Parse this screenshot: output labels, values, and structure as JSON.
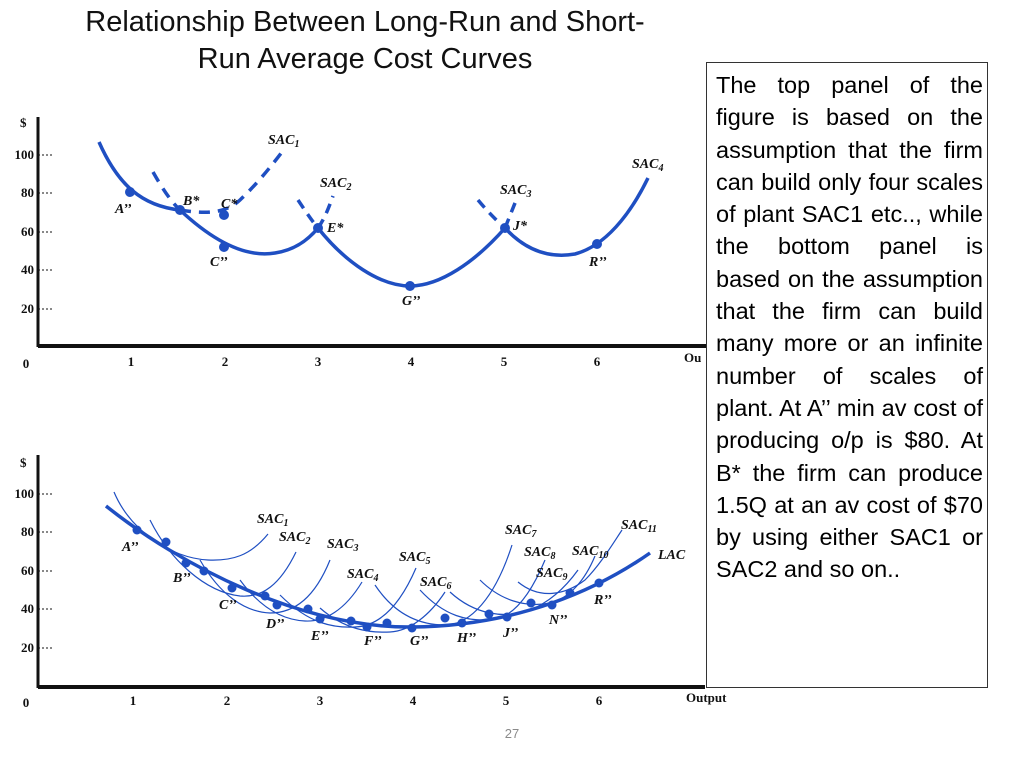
{
  "slide": {
    "title_line1": "Relationship Between Long-Run and Short-",
    "title_line2": "Run Average Cost Curves",
    "page_number": "27",
    "colors": {
      "curve": "#1f4fc2",
      "axis": "#111111",
      "text": "#000000"
    }
  },
  "top_panel": {
    "y_axis_label": "$",
    "x_axis_label": "Ou",
    "y_ticks": [
      "100",
      "80",
      "60",
      "40",
      "20"
    ],
    "x_ticks": [
      "0",
      "1",
      "2",
      "3",
      "4",
      "5",
      "6"
    ],
    "curves": {
      "sac1": {
        "label": "SAC",
        "sub": "1"
      },
      "sac2": {
        "label": "SAC",
        "sub": "2"
      },
      "sac3": {
        "label": "SAC",
        "sub": "3"
      },
      "sac4": {
        "label": "SAC",
        "sub": "4"
      }
    },
    "points": {
      "a": "A’’",
      "b": "B*",
      "c_star": "C*",
      "c": "C’’",
      "e": "E*",
      "g": "G’’",
      "j": "J*",
      "r": "R’’"
    }
  },
  "bottom_panel": {
    "y_axis_label": "$",
    "x_axis_label": "Output",
    "y_ticks": [
      "100",
      "80",
      "60",
      "40",
      "20"
    ],
    "x_ticks": [
      "0",
      "1",
      "2",
      "3",
      "4",
      "5",
      "6"
    ],
    "lac_label": "LAC",
    "curves": {
      "sac1": {
        "label": "SAC",
        "sub": "1"
      },
      "sac2": {
        "label": "SAC",
        "sub": "2"
      },
      "sac3": {
        "label": "SAC",
        "sub": "3"
      },
      "sac4": {
        "label": "SAC",
        "sub": "4"
      },
      "sac5": {
        "label": "SAC",
        "sub": "5"
      },
      "sac6": {
        "label": "SAC",
        "sub": "6"
      },
      "sac7": {
        "label": "SAC",
        "sub": "7"
      },
      "sac8": {
        "label": "SAC",
        "sub": "8"
      },
      "sac9": {
        "label": "SAC",
        "sub": "9"
      },
      "sac10": {
        "label": "SAC",
        "sub": "10"
      },
      "sac11": {
        "label": "SAC",
        "sub": "11"
      }
    },
    "points": {
      "a": "A’’",
      "b": "B’’",
      "c": "C’’",
      "d": "D’’",
      "e": "E’’",
      "f": "F’’",
      "g": "G’’",
      "h": "H’’",
      "j": "J’’",
      "n": "N’’",
      "r": "R’’"
    }
  },
  "explanation": {
    "text": "The top panel of the figure is based on the assumption that the firm can build only four scales of plant SAC1 etc.., while the bottom panel is based on the assumption that the firm can build many more or an infinite number of scales of plant. At  A’’ min av cost of producing o/p is $80. At B* the firm can produce 1.5Q at an av cost of $70 by using either SAC1 or SAC2 and so on.."
  }
}
